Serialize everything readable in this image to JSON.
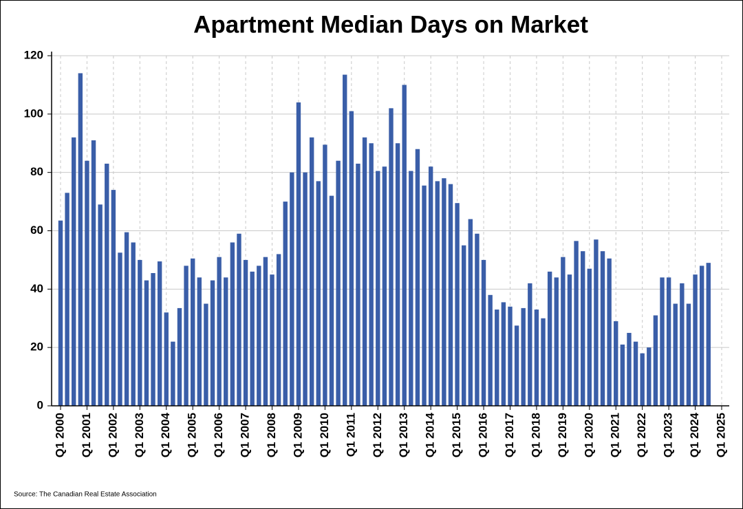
{
  "chart_data": {
    "type": "bar",
    "title": "Apartment Median Days on Market",
    "source": "Source: The Canadian Real Estate Association",
    "color": "#3a5ea8",
    "grid": true,
    "categories": [
      "Q1 2000",
      null,
      null,
      null,
      "Q1 2001",
      null,
      null,
      null,
      "Q1 2002",
      null,
      null,
      null,
      "Q1 2003",
      null,
      null,
      null,
      "Q1 2004",
      null,
      null,
      null,
      "Q1 2005",
      null,
      null,
      null,
      "Q1 2006",
      null,
      null,
      null,
      "Q1 2007",
      null,
      null,
      null,
      "Q1 2008",
      null,
      null,
      null,
      "Q1 2009",
      null,
      null,
      null,
      "Q1 2010",
      null,
      null,
      null,
      "Q1 2011",
      null,
      null,
      null,
      "Q1 2012",
      null,
      null,
      null,
      "Q1 2013",
      null,
      null,
      null,
      "Q1 2014",
      null,
      null,
      null,
      "Q1 2015",
      null,
      null,
      null,
      "Q1 2016",
      null,
      null,
      null,
      "Q1 2017",
      null,
      null,
      null,
      "Q1 2018",
      null,
      null,
      null,
      "Q1 2019",
      null,
      null,
      null,
      "Q1 2020",
      null,
      null,
      null,
      "Q1 2021",
      null,
      null,
      null,
      "Q1 2022",
      null,
      null,
      null,
      "Q1 2023",
      null,
      null,
      null,
      "Q1 2024",
      null,
      null,
      null,
      "Q1 2025"
    ],
    "values": [
      63.5,
      73,
      92,
      114,
      84,
      91,
      69,
      83,
      74,
      52.5,
      59.5,
      56,
      50,
      43,
      45.5,
      49.5,
      32,
      22,
      33.5,
      48,
      50.5,
      44,
      35,
      43,
      51,
      44,
      56,
      59,
      50,
      46,
      48,
      51,
      45,
      52,
      70,
      80,
      104,
      80,
      92,
      77,
      89.5,
      72,
      84,
      113.5,
      101,
      83,
      92,
      90,
      80.5,
      82,
      102,
      90,
      110,
      80.5,
      88,
      75.5,
      82,
      77,
      78,
      76,
      69.5,
      55,
      64,
      59,
      50,
      38,
      33,
      35.5,
      34,
      27.5,
      33.5,
      42,
      33,
      30,
      46,
      44,
      51,
      45,
      56.5,
      53,
      47,
      57,
      53,
      50.5,
      29,
      21,
      25,
      22,
      18,
      20,
      31,
      44,
      44,
      35,
      42,
      35,
      45,
      48,
      49,
      null,
      null
    ],
    "ylim": [
      0,
      120
    ],
    "yticks": [
      0,
      20,
      40,
      60,
      80,
      100,
      120
    ]
  }
}
